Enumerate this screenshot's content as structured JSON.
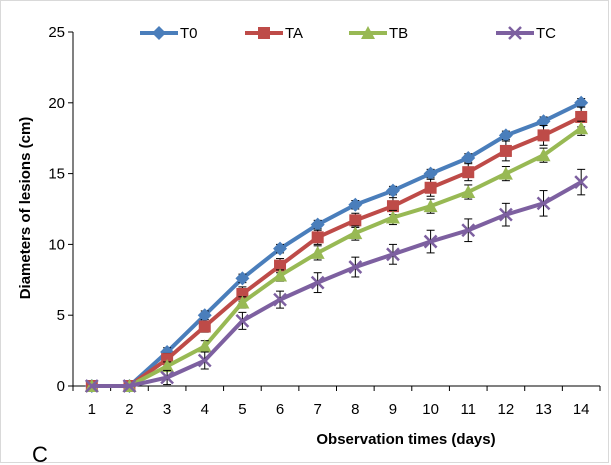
{
  "panel_label": "C",
  "chart_data": {
    "type": "line",
    "title": "",
    "xlabel": "Observation times (days)",
    "ylabel": "Diameters of lesions (cm)",
    "x": [
      1,
      2,
      3,
      4,
      5,
      6,
      7,
      8,
      9,
      10,
      11,
      12,
      13,
      14
    ],
    "ylim": [
      0,
      25
    ],
    "yticks": [
      0,
      5,
      10,
      15,
      20,
      25
    ],
    "grid": false,
    "legend_position": "top",
    "error_bars": true,
    "series": [
      {
        "name": "T0",
        "color": "#4a7ebb",
        "marker": "diamond",
        "values": [
          0,
          0,
          2.4,
          5.0,
          7.6,
          9.7,
          11.4,
          12.8,
          13.8,
          15.0,
          16.1,
          17.7,
          18.7,
          20.0
        ],
        "errors": [
          0,
          0,
          0.3,
          0.3,
          0.3,
          0.3,
          0.3,
          0.3,
          0.3,
          0.3,
          0.3,
          0.3,
          0.3,
          0.3
        ]
      },
      {
        "name": "TA",
        "color": "#be4b48",
        "marker": "square",
        "values": [
          0,
          0,
          1.9,
          4.2,
          6.5,
          8.5,
          10.5,
          11.7,
          12.7,
          14.0,
          15.1,
          16.6,
          17.7,
          19.0
        ],
        "errors": [
          0,
          0,
          0.4,
          0.4,
          0.5,
          0.5,
          0.5,
          0.5,
          0.6,
          0.6,
          0.6,
          0.7,
          0.7,
          0.7
        ]
      },
      {
        "name": "TB",
        "color": "#98b954",
        "marker": "triangle",
        "values": [
          0,
          0,
          1.4,
          2.8,
          5.9,
          7.8,
          9.4,
          10.8,
          11.9,
          12.7,
          13.7,
          15.0,
          16.3,
          18.2
        ],
        "errors": [
          0,
          0,
          0.3,
          0.4,
          0.4,
          0.4,
          0.5,
          0.5,
          0.5,
          0.5,
          0.5,
          0.5,
          0.5,
          0.5
        ]
      },
      {
        "name": "TC",
        "color": "#7d60a0",
        "marker": "x",
        "values": [
          0,
          0,
          0.6,
          1.8,
          4.6,
          6.1,
          7.3,
          8.4,
          9.3,
          10.2,
          11.0,
          12.1,
          12.9,
          14.4
        ],
        "errors": [
          0,
          0,
          0.5,
          0.6,
          0.6,
          0.6,
          0.7,
          0.7,
          0.7,
          0.8,
          0.8,
          0.8,
          0.9,
          0.9
        ]
      }
    ]
  }
}
